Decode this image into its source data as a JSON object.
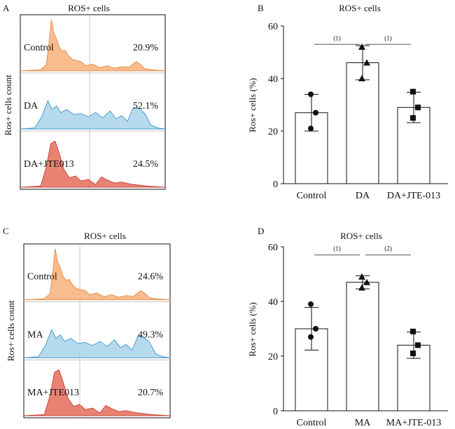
{
  "chart_data": [
    {
      "panel": "A",
      "type": "area",
      "title": "ROS+ cells",
      "ylabel": "Ros+ cells count",
      "series": [
        {
          "name": "Control",
          "percent": "20.9%",
          "color": "#f7b07a"
        },
        {
          "name": "DA",
          "percent": "52.1%",
          "color": "#a9d3ea"
        },
        {
          "name": "DA+JTE013",
          "percent": "24.5%",
          "color": "#e46d5a"
        }
      ]
    },
    {
      "panel": "B",
      "type": "bar",
      "title": "ROS+ cells",
      "ylabel": "Ros+ cells (%)",
      "ylim": [
        0,
        60
      ],
      "yticks": [
        0,
        20,
        40,
        60
      ],
      "categories": [
        "Control",
        "DA",
        "DA+JTE-013"
      ],
      "values": [
        27,
        46,
        29
      ],
      "errors": [
        7,
        6.5,
        5.8
      ],
      "markers": [
        "circle",
        "triangle",
        "square"
      ],
      "points": [
        [
          34,
          27,
          21
        ],
        [
          52,
          46,
          40
        ],
        [
          35,
          29,
          25
        ]
      ],
      "significance": [
        {
          "from": 0,
          "to": 1,
          "label": "(1)",
          "y": 53
        },
        {
          "from": 1,
          "to": 2,
          "label": "(1)",
          "y": 53
        }
      ]
    },
    {
      "panel": "C",
      "type": "area",
      "title": "ROS+ cells",
      "ylabel": "Ros+ cells count",
      "series": [
        {
          "name": "Control",
          "percent": "24.6%",
          "color": "#f7b07a"
        },
        {
          "name": "MA",
          "percent": "49.3%",
          "color": "#a9d3ea"
        },
        {
          "name": "MA+JTE013",
          "percent": "20.7%",
          "color": "#e46d5a"
        }
      ]
    },
    {
      "panel": "D",
      "type": "bar",
      "title": "ROS+ cells",
      "ylabel": "Ros+ cells (%)",
      "ylim": [
        0,
        60
      ],
      "yticks": [
        0,
        20,
        40,
        60
      ],
      "categories": [
        "Control",
        "MA",
        "MA+JTE-013"
      ],
      "values": [
        30,
        47,
        24
      ],
      "errors": [
        7.8,
        2.4,
        4.8
      ],
      "markers": [
        "circle",
        "triangle",
        "square"
      ],
      "points": [
        [
          39,
          30,
          27
        ],
        [
          49,
          47,
          45
        ],
        [
          29,
          24,
          21
        ]
      ],
      "significance": [
        {
          "from": 0,
          "to": 1,
          "label": "(1)",
          "y": 57
        },
        {
          "from": 1,
          "to": 2,
          "label": "(2)",
          "y": 57
        }
      ]
    }
  ]
}
